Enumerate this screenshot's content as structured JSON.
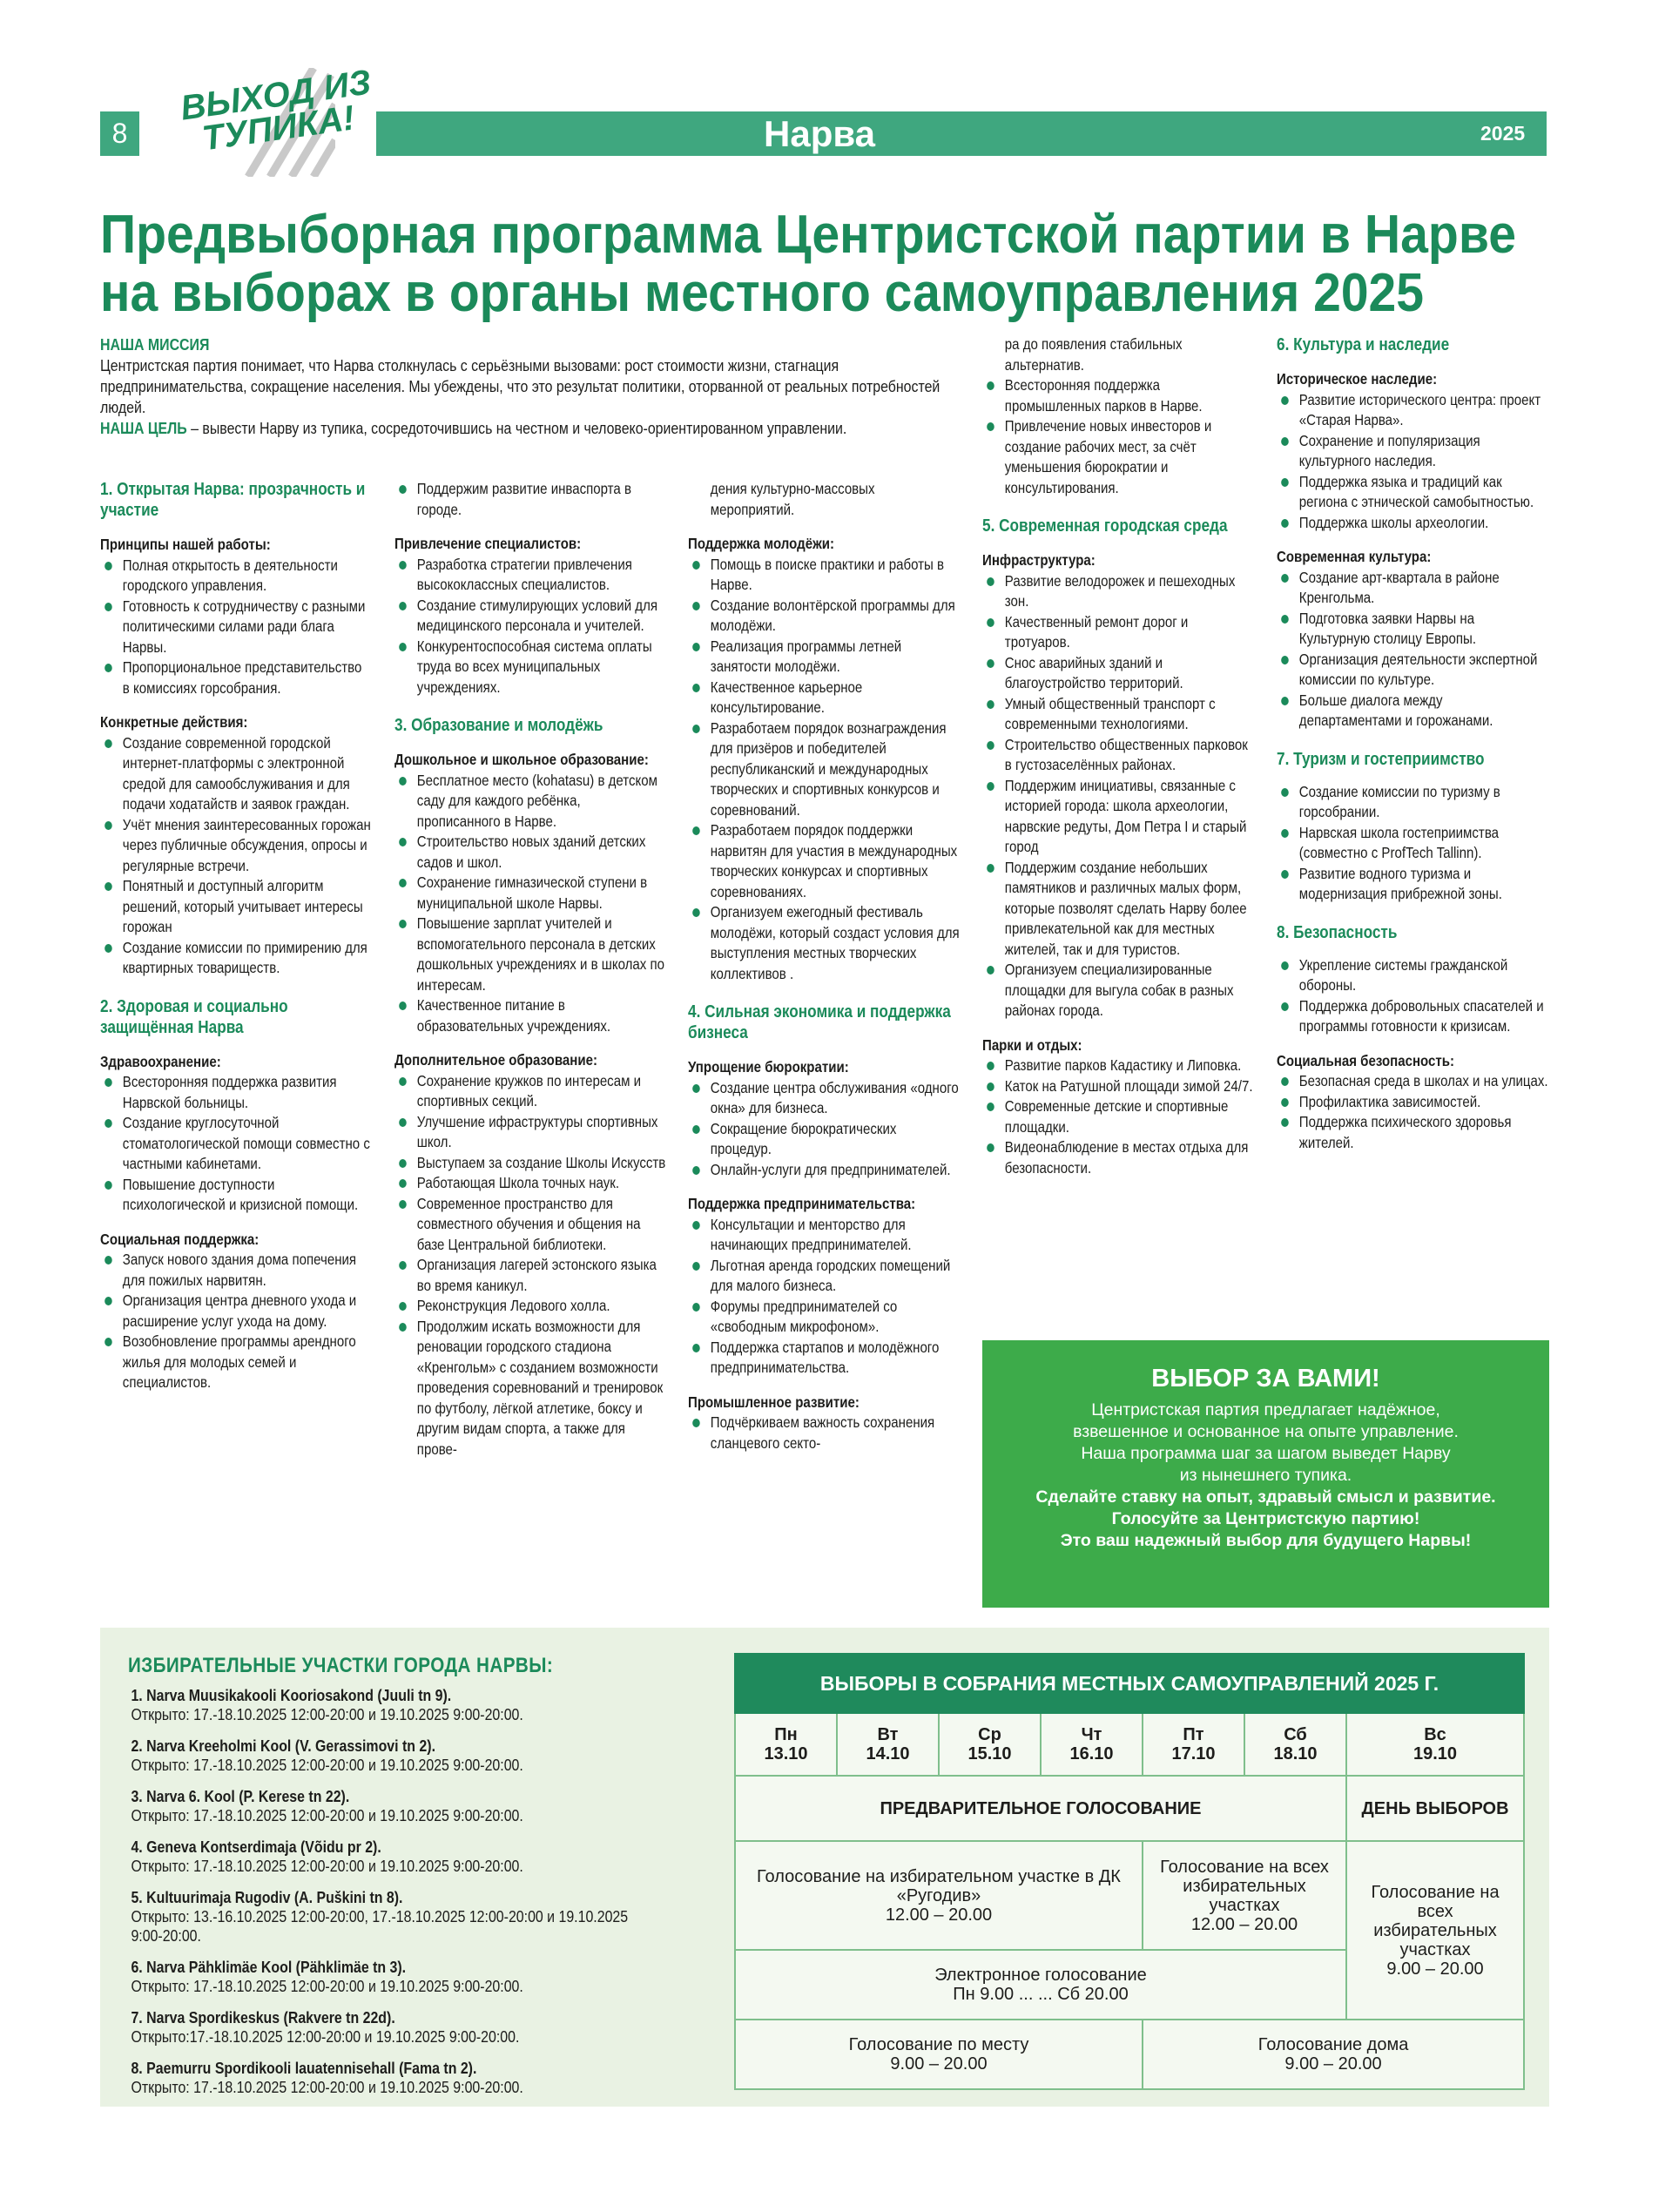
{
  "header": {
    "page": "8",
    "logo": [
      "ВЫХОД ИЗ",
      "ТУПИКА!"
    ],
    "section": "Нарва",
    "year": "2025"
  },
  "title": [
    "Предвыборная программа Центристской партии в Нарве",
    "на выборах в органы местного самоуправления 2025"
  ],
  "intro": {
    "mission_label": "НАША МИССИЯ",
    "mission": "Центристская партия понимает, что Нарва столкнулась с серьёзными вызовами: рост стоимости жизни, стагнация предпринимательства, сокращение населения. Мы убеждены, что это результат политики, оторванной от реальных потребностей людей.",
    "goal_label": "НАША ЦЕЛЬ",
    "goal": " – вывести Нарву из тупика, сосредоточившись на честном и человеко-ориентированном управлении."
  },
  "columns": [
    [
      {
        "heading": "1. Открытая Нарва: прозрачность и участие"
      },
      {
        "subheading": "Принципы нашей работы:",
        "items": [
          "Полная открытость в деятельности городского управления.",
          "Готовность к сотрудничеству с разными политическими силами ради блага Нарвы.",
          "Пропорциональное представительство в комиссиях горсобрания."
        ]
      },
      {
        "subheading": "Конкретные действия:",
        "items": [
          "Создание современной городской интернет-платформы с электронной средой для самообслуживания и для подачи ходатайств и заявок граждан.",
          "Учёт мнения заинтересованных горожан через публичные обсуждения, опросы и регулярные встречи.",
          "Понятный и доступный алгоритм решений, который учитывает интересы горожан",
          "Создание комиссии по примирению для квартирных товариществ."
        ]
      },
      {
        "heading": "2. Здоровая и социально защищённая Нарва"
      },
      {
        "subheading": "Здравоохранение:",
        "items": [
          "Всесторонняя поддержка развития Нарвской больницы.",
          "Создание круглосуточной стоматологической помощи совместно с частными кабинетами.",
          "Повышение доступности психологической и кризисной помощи."
        ]
      },
      {
        "subheading": "Социальная поддержка:",
        "items": [
          "Запуск нового здания дома попечения для пожилых нарвитян.",
          "Организация центра дневного ухода и расширение услуг ухода на дому.",
          "Возобновление программы арендного жилья для молодых семей и специалистов."
        ]
      }
    ],
    [
      {
        "items": [
          "Поддержим развитие инваспорта в городе."
        ]
      },
      {
        "subheading": "Привлечение специалистов:",
        "items": [
          "Разработка стратегии привлечения высококлассных специалистов.",
          "Создание стимулирующих условий для медицинского персонала и учителей.",
          "Конкурентоспособная система оплаты труда во всех муниципальных учреждениях."
        ]
      },
      {
        "heading": "3. Образование и молодёжь"
      },
      {
        "subheading": "Дошкольное и школьное образование:",
        "items": [
          "Бесплатное место (kohatasu) в детском саду для каждого ребёнка, прописанного в Нарве.",
          "Строительство новых зданий детских садов и школ.",
          "Сохранение гимназической ступени в муниципальной школе Нарвы.",
          "Повышение зарплат учителей и вспомогательного персонала в детских дошкольных учреждениях и в школах по интересам.",
          "Качественное питание в образовательных учреждениях."
        ]
      },
      {
        "subheading": "Дополнительное образование:",
        "items": [
          "Сохранение кружков по интересам и спортивных секций.",
          "Улучшение ифраструктуры спортивных школ.",
          "Выступаем за создание Школы Искусств",
          "Работающая Школа точных наук.",
          "Современное пространство для совместного обучения и общения на базе Центральной библиотеки.",
          "Организация лагерей эстонского языка во время каникул.",
          "Реконструкция Ледового холла.",
          "Продолжим искать возможности для реновации городского стадиона «Кренгольм» с созданием возможности проведения соревнований и тренировок по футболу, лёгкой атлетике, боксу и другим видам спорта, а также для прове-"
        ]
      }
    ],
    [
      {
        "text": "дения культурно-массовых мероприятий."
      },
      {
        "subheading": "Поддержка молодёжи:",
        "items": [
          "Помощь в поиске практики и работы в Нарве.",
          "Создание волонтёрской программы для молодёжи.",
          "Реализация программы летней занятости молодёжи.",
          "Качественное карьерное консультирование.",
          "Разработаем порядок вознаграждения для призёров и победителей республиканский и международных творческих и спортивных конкурсов и соревнований.",
          "Разработаем порядок поддержки нарвитян для участия в международных творческих конкурсах и спортивных соревнованиях.",
          "Организуем ежегодный фестиваль молодёжи, который создаст условия для выступления местных творческих коллективов ."
        ]
      },
      {
        "heading": "4. Сильная экономика и поддержка бизнеса"
      },
      {
        "subheading": "Упрощение бюрократии:",
        "items": [
          "Создание центра обслуживания «одного окна» для бизнеса.",
          "Сокращение бюрократических процедур.",
          "Онлайн-услуги для предпринимателей."
        ]
      },
      {
        "subheading": "Поддержка предпринимательства:",
        "items": [
          "Консультации и менторство для начинающих предпринимателей.",
          "Льготная аренда городских помещений для малого бизнеса.",
          "Форумы предпринимателей со «свободным микрофоном».",
          "Поддержка стартапов и молодёжного предпринимательства."
        ]
      },
      {
        "subheading": "Промышленное развитие:",
        "items": [
          "Подчёркиваем важность сохранения сланцевого секто-"
        ]
      }
    ],
    [
      {
        "text": "ра до появления стабильных альтернатив."
      },
      {
        "items": [
          "Всесторонняя поддержка промышленных парков в Нарве.",
          "Привлечение новых инвесторов и создание рабочих мест, за счёт уменьшения бюрократии и консультирования."
        ]
      },
      {
        "heading": "5. Современная городская среда"
      },
      {
        "subheading": "Инфраструктура:",
        "items": [
          "Развитие велодорожек и пешеходных зон.",
          "Качественный ремонт дорог и тротуаров.",
          "Снос аварийных зданий и благоустройство территорий.",
          "Умный общественный транспорт с современными технологиями.",
          "Строительство общественных парковок в густозаселённых районах.",
          "Поддержим инициативы, связанные с историей города: школа археологии, нарвские редуты, Дом Петра I и старый город",
          "Поддержим создание небольших памятников и различных малых форм, которые позволят сделать Нарву более привлекательной как для местных жителей, так и для туристов.",
          "Организуем специализированные площадки для выгула собак в разных районах города."
        ]
      },
      {
        "subheading": "Парки и отдых:",
        "items": [
          "Развитие парков Кадастику и Липовка.",
          "Каток на Ратушной площади зимой 24/7.",
          "Современные детские и спортивные площадки.",
          "Видеонаблюдение в местах отдыха для безопасности."
        ]
      }
    ],
    [
      {
        "heading": "6. Культура и наследие"
      },
      {
        "subheading": "Историческое наследие:",
        "items": [
          "Развитие исторического центра: проект «Старая Нарва».",
          "Сохранение и популяризация культурного наследия.",
          "Поддержка языка и традиций как региона с этнической самобытностью.",
          "Поддержка школы археологии."
        ]
      },
      {
        "subheading": "Современная культура:",
        "items": [
          "Создание арт-квартала в районе Кренгольма.",
          "Подготовка заявки Нарвы на Культурную столицу Европы.",
          "Организация деятельности экспертной комиссии по культуре.",
          "Больше диалога между департаментами и горожанами."
        ]
      },
      {
        "heading": "7. Туризм и гостеприимство",
        "items": [
          "Создание комиссии по туризму в горсобрании.",
          "Нарвская школа гостеприимства (совместно с ProfTech Tallinn).",
          "Развитие водного туризма и модернизация прибрежной зоны."
        ]
      },
      {
        "heading": "8. Безопасность",
        "items": [
          "Укрепление системы гражданской обороны.",
          "Поддержка добровольных спасателей и программы готовности к кризисам."
        ]
      },
      {
        "subheading": "Социальная безопасность:",
        "items": [
          "Безопасная среда в школах и на улицах.",
          "Профилактика зависимостей.",
          "Поддержка психического здоровья жителей."
        ]
      }
    ]
  ],
  "callout": {
    "title": "ВЫБОР ЗА ВАМИ!",
    "lines": [
      "Центристская партия предлагает надёжное,",
      "взвешенное и основанное на опыте управление.",
      "Наша программа шаг за шагом выведет Нарву",
      "из нынешнего тупика."
    ],
    "bold_lines": [
      "Сделайте ставку на опыт, здравый смысл и развитие.",
      "Голосуйте за Центристскую партию!",
      "Это ваш надежный выбор для будущего Нарвы!"
    ]
  },
  "polling": {
    "title": "ИЗБИРАТЕЛЬНЫЕ УЧАСТКИ ГОРОДА НАРВЫ:",
    "stations": [
      {
        "name": "1. Narva Muusikakooli Kooriosakond (Juuli tn 9).",
        "hours": "Открыто: 17.-18.10.2025 12:00-20:00 и 19.10.2025 9:00-20:00."
      },
      {
        "name": "2. Narva Kreeholmi Kool (V. Gerassimovi tn 2).",
        "hours": "Открыто: 17.-18.10.2025 12:00-20:00 и 19.10.2025 9:00-20:00."
      },
      {
        "name": "3. Narva 6. Kool (P. Kerese tn 22).",
        "hours": "Открыто: 17.-18.10.2025 12:00-20:00 и 19.10.2025 9:00-20:00."
      },
      {
        "name": "4. Geneva Kontserdimaja (Võidu pr 2).",
        "hours": "Открыто: 17.-18.10.2025 12:00-20:00 и 19.10.2025 9:00-20:00."
      },
      {
        "name": "5. Kultuurimaja Rugodiv (A. Puškini tn 8).",
        "hours": "Открыто:  13.-16.10.2025 12:00-20:00, 17.-18.10.2025 12:00-20:00 и 19.10.2025 9:00-20:00."
      },
      {
        "name": "6. Narva Pähklimäe Kool (Pähklimäe tn 3).",
        "hours": "Открыто: 17.-18.10.2025 12:00-20:00 и 19.10.2025 9:00-20:00."
      },
      {
        "name": "7. Narva Spordikeskus (Rakvere tn 22d).",
        "hours": "Открыто:17.-18.10.2025 12:00-20:00 и 19.10.2025 9:00-20:00."
      },
      {
        "name": "8. Paemurru Spordikooli lauatennisehall (Fama tn 2).",
        "hours": "Открыто: 17.-18.10.2025 12:00-20:00 и 19.10.2025 9:00-20:00."
      }
    ]
  },
  "schedule": {
    "title": "ВЫБОРЫ В СОБРАНИЯ МЕСТНЫХ САМОУПРАВЛЕНИЙ 2025 Г.",
    "days": [
      {
        "day": "Пн",
        "date": "13.10"
      },
      {
        "day": "Вт",
        "date": "14.10"
      },
      {
        "day": "Ср",
        "date": "15.10"
      },
      {
        "day": "Чт",
        "date": "16.10"
      },
      {
        "day": "Пт",
        "date": "17.10"
      },
      {
        "day": "Сб",
        "date": "18.10"
      },
      {
        "day": "Вс",
        "date": "19.10"
      }
    ],
    "advance": "ПРЕДВАРИТЕЛЬНОЕ ГОЛОСОВАНИЕ",
    "election_day": "ДЕНЬ ВЫБОРОВ",
    "rugodiv": [
      "Голосование на избирательном участке в ДК «Ругодив»",
      "12.00 – 20.00"
    ],
    "all_advance": [
      "Голосование на всех избирательных участках",
      "12.00 – 20.00"
    ],
    "all_day": [
      "Голосование на всех избирательных участках",
      "9.00 – 20.00"
    ],
    "electronic": [
      "Электронное голосование",
      "Пн 9.00 ...         ... Сб 20.00"
    ],
    "by_location": [
      "Голосование по месту",
      "9.00 – 20.00"
    ],
    "home": [
      "Голосование дома",
      "9.00 – 20.00"
    ]
  }
}
